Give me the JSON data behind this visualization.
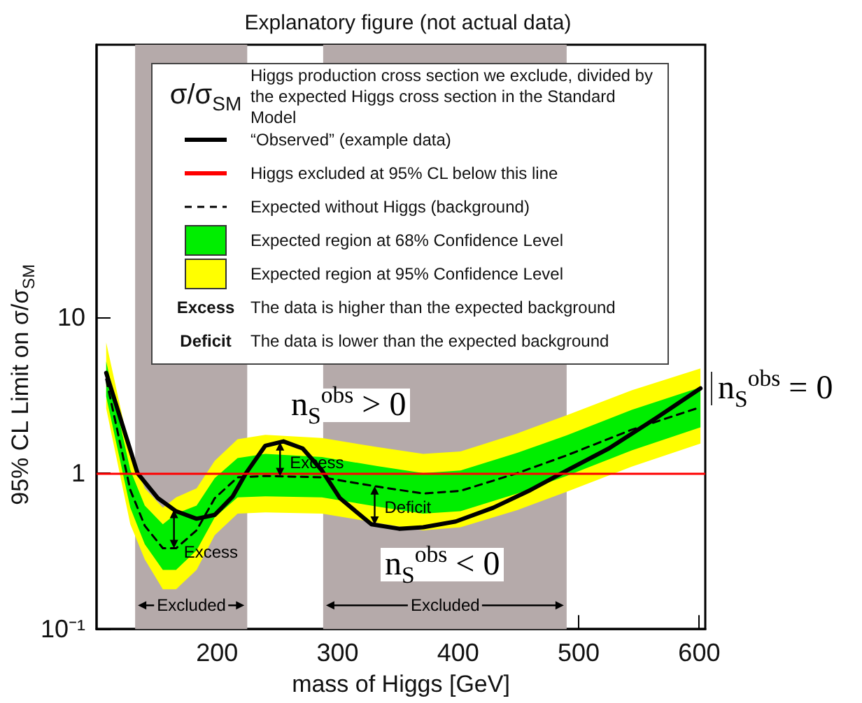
{
  "chart_data": {
    "type": "line",
    "title": "Explanatory figure (not actual data)",
    "xlabel": "mass of Higgs [GeV]",
    "ylabel": "95% CL Limit on σ/σ$_{SM}$",
    "xlim": [
      100,
      605
    ],
    "xticks": [
      200,
      300,
      400,
      500,
      600
    ],
    "ylim": [
      0.1,
      560
    ],
    "yticks": [
      {
        "value": 0.1,
        "label": "10⁻¹"
      },
      1,
      10
    ],
    "log": "y",
    "grid": false,
    "legend": "top",
    "marker": "none",
    "series": [
      {
        "name": "“Observed” (example data)",
        "color": "#000000",
        "line_style": "solid",
        "x": [
          108,
          134,
          151,
          166,
          183,
          198,
          213,
          224,
          240,
          255,
          271,
          287,
          302,
          328,
          351,
          371,
          398,
          429,
          460,
          490,
          525,
          564,
          601
        ],
        "values": [
          4.4,
          1,
          0.69,
          0.57,
          0.51,
          0.54,
          0.71,
          1,
          1.5,
          1.6,
          1.44,
          1.04,
          0.69,
          0.47,
          0.44,
          0.45,
          0.49,
          0.6,
          0.78,
          1.04,
          1.44,
          2.25,
          3.5
        ]
      },
      {
        "name": "Expected without Higgs (background)",
        "color": "#000000",
        "line_style": "dashed",
        "x": [
          108,
          128,
          140,
          155,
          166,
          183,
          198,
          217,
          240,
          287,
          333,
          371,
          402,
          449,
          490,
          544,
          601
        ],
        "values": [
          4.0,
          0.78,
          0.46,
          0.33,
          0.33,
          0.43,
          0.69,
          0.94,
          0.96,
          0.94,
          0.82,
          0.74,
          0.77,
          1.0,
          1.3,
          1.9,
          2.65
        ]
      },
      {
        "name": "Expected region at 95% Confidence Level",
        "color": "#ffff00",
        "x": [
          108,
          128,
          140,
          155,
          166,
          183,
          198,
          217,
          240,
          287,
          333,
          371,
          402,
          449,
          490,
          544,
          601
        ],
        "values": [
          null,
          null,
          null,
          null,
          null,
          null,
          null,
          null,
          null,
          null,
          null,
          null,
          null,
          null,
          null,
          null,
          null
        ],
        "upper": [
          6.9,
          1.35,
          0.8,
          0.6,
          0.7,
          0.8,
          1.2,
          1.65,
          1.76,
          1.68,
          1.47,
          1.33,
          1.38,
          1.8,
          2.35,
          3.4,
          4.7
        ],
        "lower": [
          2.6,
          0.47,
          0.28,
          0.18,
          0.18,
          0.24,
          0.4,
          0.55,
          0.56,
          0.55,
          0.48,
          0.43,
          0.45,
          0.58,
          0.76,
          1.1,
          1.55
        ]
      },
      {
        "name": "Expected region at 68% Confidence Level",
        "color": "#00ee00",
        "x": [
          108,
          128,
          140,
          155,
          166,
          183,
          198,
          217,
          240,
          287,
          333,
          371,
          402,
          449,
          490,
          544,
          601
        ],
        "values": [
          null,
          null,
          null,
          null,
          null,
          null,
          null,
          null,
          null,
          null,
          null,
          null,
          null,
          null,
          null,
          null,
          null
        ],
        "upper": [
          5.2,
          1.05,
          0.62,
          0.47,
          0.55,
          0.62,
          0.93,
          1.25,
          1.33,
          1.27,
          1.11,
          1.0,
          1.04,
          1.35,
          1.75,
          2.55,
          3.55
        ],
        "lower": [
          3.1,
          0.6,
          0.35,
          0.24,
          0.24,
          0.32,
          0.52,
          0.7,
          0.71,
          0.7,
          0.61,
          0.55,
          0.57,
          0.74,
          0.96,
          1.4,
          1.97
        ]
      }
    ],
    "ref_lines": [
      {
        "axis": "y",
        "value": 1,
        "label": "Higgs excluded at 95% CL below this line",
        "color": "#ff0000"
      }
    ],
    "bands": [
      {
        "axis": "x",
        "from": 132,
        "to": 225,
        "label": "Excluded",
        "color": "#b5aaaa"
      },
      {
        "axis": "x",
        "from": 288,
        "to": 490,
        "label": "Excluded",
        "color": "#b5aaaa"
      }
    ],
    "annotations": [
      "σ/σ$_{SM}$",
      "Higgs production cross section we exclude, divided by the expected Higgs cross section in the Standard Model",
      "Excess",
      "The data is higher than the expected background",
      "Deficit",
      "The data is lower than the expected background",
      {
        "text": "Excess",
        "x": 195,
        "y": 0.31
      },
      {
        "text": "Excess",
        "x": 283,
        "y": 1.17
      },
      {
        "text": "Deficit",
        "x": 358,
        "y": 0.6
      },
      "n$_{S}$$^{obs}$ > 0",
      "n$_{S}$$^{obs}$ < 0",
      "n$_{S}$$^{obs}$ = 0"
    ]
  }
}
